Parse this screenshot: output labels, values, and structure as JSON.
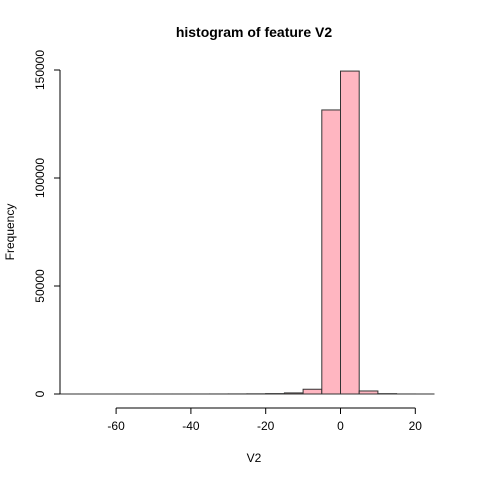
{
  "chart_data": {
    "type": "bar",
    "title": "histogram of feature V2",
    "xlabel": "V2",
    "ylabel": "Frequency",
    "bar_color": "#ffb6c1",
    "xlim": [
      -75,
      25
    ],
    "ylim": [
      0,
      150000
    ],
    "x_ticks": [
      -60,
      -40,
      -20,
      0,
      20
    ],
    "y_ticks": [
      0,
      50000,
      100000,
      150000
    ],
    "bins": [
      {
        "x0": -75,
        "x1": -70,
        "count": 2
      },
      {
        "x0": -70,
        "x1": -65,
        "count": 1
      },
      {
        "x0": -65,
        "x1": -60,
        "count": 2
      },
      {
        "x0": -60,
        "x1": -55,
        "count": 3
      },
      {
        "x0": -55,
        "x1": -50,
        "count": 3
      },
      {
        "x0": -50,
        "x1": -45,
        "count": 5
      },
      {
        "x0": -45,
        "x1": -40,
        "count": 8
      },
      {
        "x0": -40,
        "x1": -35,
        "count": 12
      },
      {
        "x0": -35,
        "x1": -30,
        "count": 20
      },
      {
        "x0": -30,
        "x1": -25,
        "count": 40
      },
      {
        "x0": -25,
        "x1": -20,
        "count": 80
      },
      {
        "x0": -20,
        "x1": -15,
        "count": 180
      },
      {
        "x0": -15,
        "x1": -10,
        "count": 500
      },
      {
        "x0": -10,
        "x1": -5,
        "count": 2200
      },
      {
        "x0": -5,
        "x1": 0,
        "count": 131500
      },
      {
        "x0": 0,
        "x1": 5,
        "count": 149500
      },
      {
        "x0": 5,
        "x1": 10,
        "count": 1400
      },
      {
        "x0": 10,
        "x1": 15,
        "count": 150
      },
      {
        "x0": 15,
        "x1": 20,
        "count": 20
      },
      {
        "x0": 20,
        "x1": 25,
        "count": 5
      }
    ]
  }
}
